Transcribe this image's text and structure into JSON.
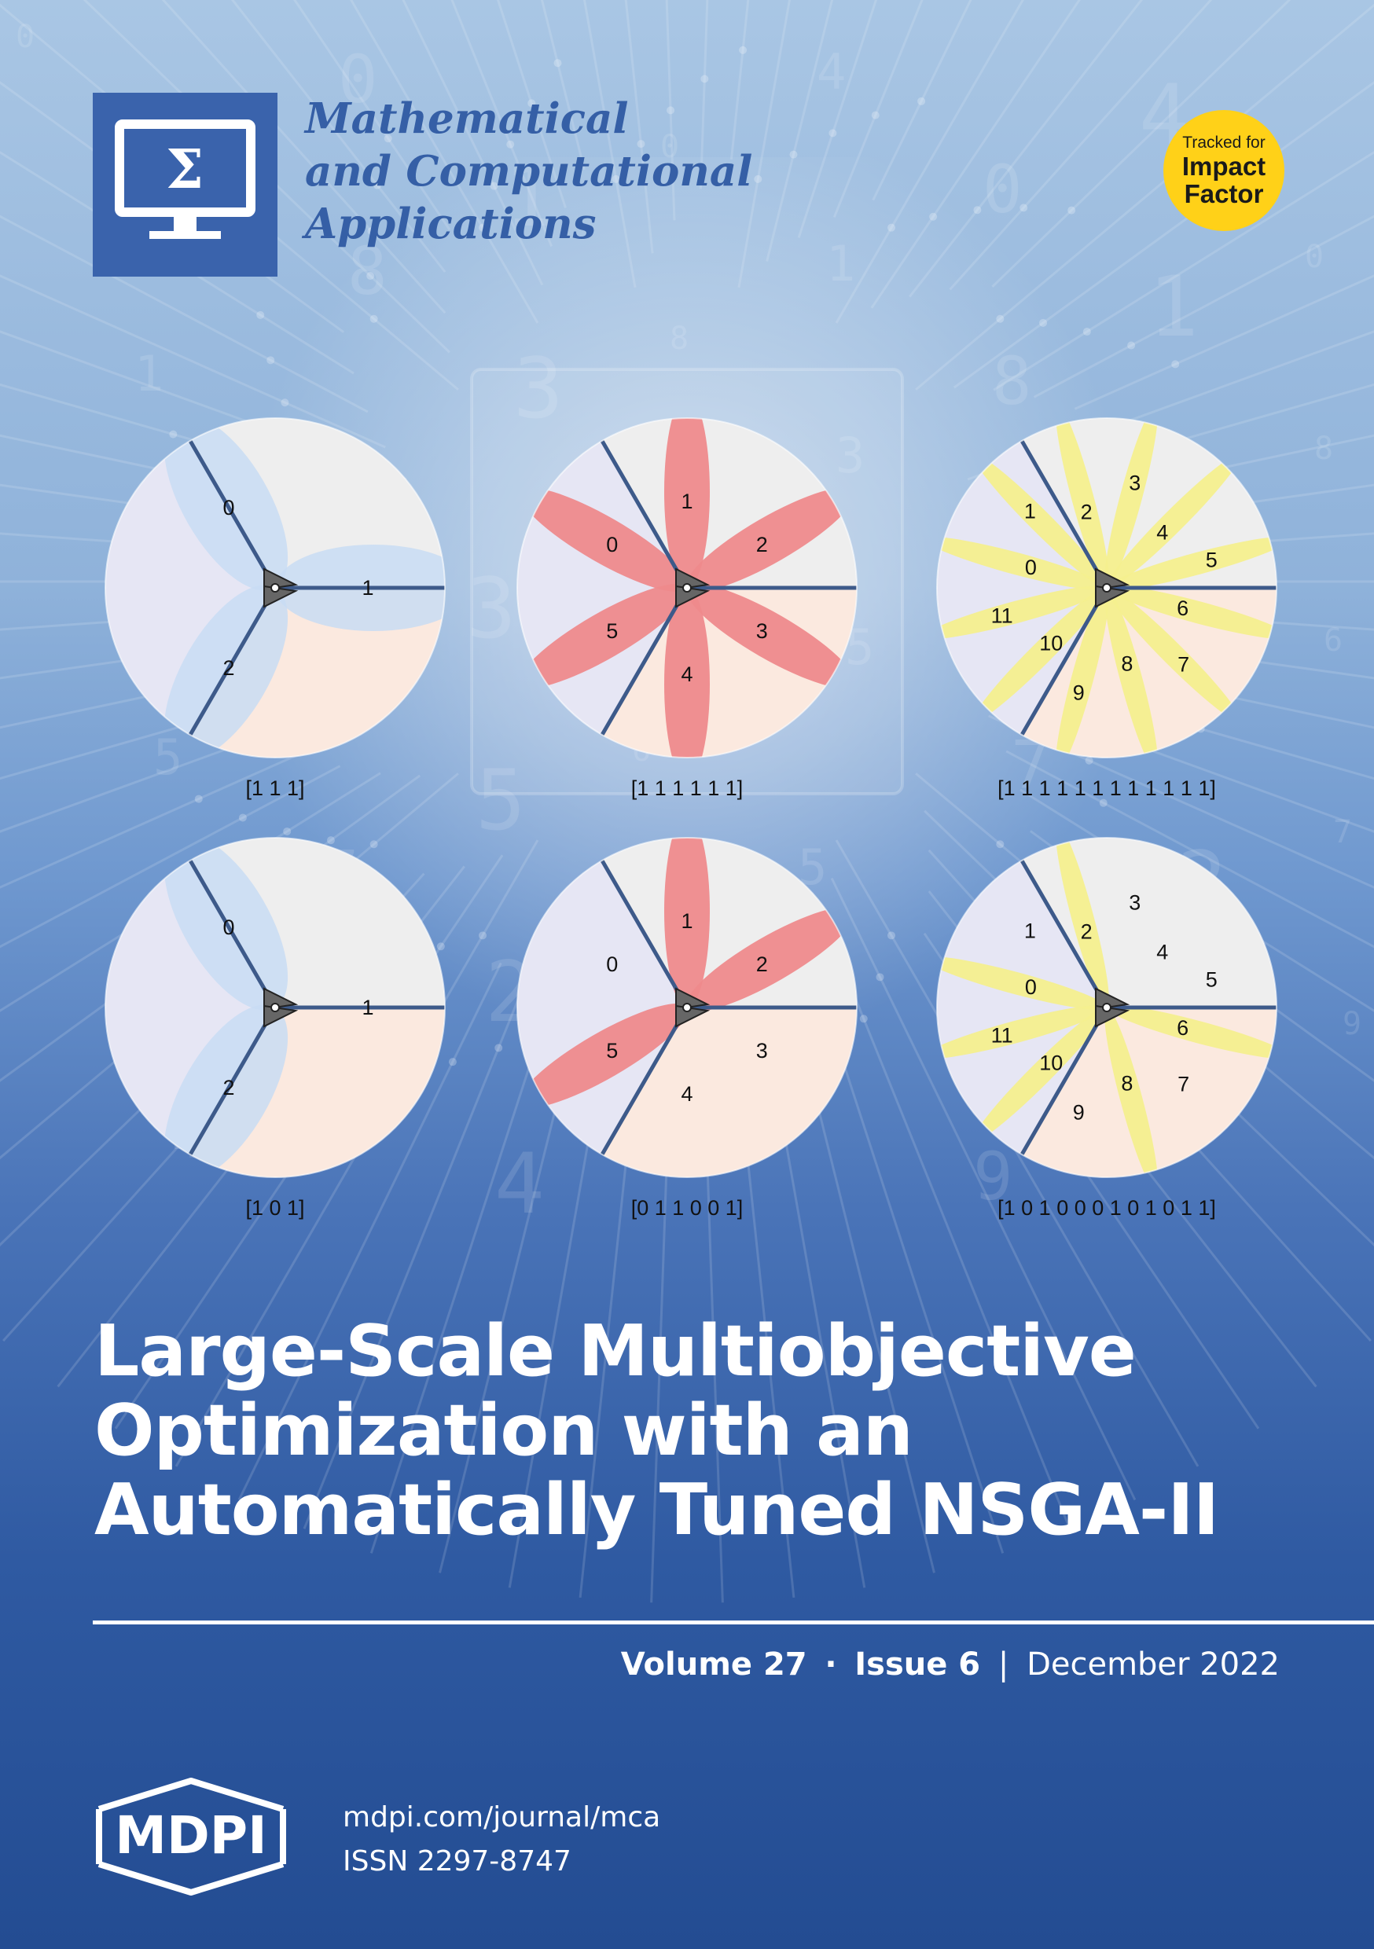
{
  "journal": {
    "title_lines": [
      "Mathematical",
      "and Computational",
      "Applications"
    ],
    "logo_symbol": "Σ",
    "logo_icon": "monitor-sigma-icon"
  },
  "badge": {
    "line1": "Tracked for",
    "line2": "Impact",
    "line3": "Factor"
  },
  "diagrams": [
    {
      "label": "[1 1 1]",
      "sectors": [
        {
          "id": "0",
          "petal": true
        },
        {
          "id": "1",
          "petal": true
        },
        {
          "id": "2",
          "petal": true
        }
      ],
      "petal_color": "#c8dcf3"
    },
    {
      "label": "[1 1 1 1 1 1]",
      "sectors": [
        {
          "id": "0",
          "petal": true
        },
        {
          "id": "1",
          "petal": true
        },
        {
          "id": "2",
          "petal": true
        },
        {
          "id": "3",
          "petal": true
        },
        {
          "id": "4",
          "petal": true
        },
        {
          "id": "5",
          "petal": true
        }
      ],
      "petal_color": "#ee8a8c"
    },
    {
      "label": "[1 1 1 1 1 1 1 1 1 1 1 1]",
      "sectors": [
        {
          "id": "0",
          "petal": true
        },
        {
          "id": "1",
          "petal": true
        },
        {
          "id": "2",
          "petal": true
        },
        {
          "id": "3",
          "petal": true
        },
        {
          "id": "4",
          "petal": true
        },
        {
          "id": "5",
          "petal": true
        },
        {
          "id": "6",
          "petal": true
        },
        {
          "id": "7",
          "petal": true
        },
        {
          "id": "8",
          "petal": true
        },
        {
          "id": "9",
          "petal": true
        },
        {
          "id": "10",
          "petal": true
        },
        {
          "id": "11",
          "petal": true
        }
      ],
      "petal_color": "#f4ef8e"
    },
    {
      "label": "[1 0 1]",
      "sectors": [
        {
          "id": "0",
          "petal": true
        },
        {
          "id": "1",
          "petal": false
        },
        {
          "id": "2",
          "petal": true
        }
      ],
      "petal_color": "#c8dcf3"
    },
    {
      "label": "[0 1 1 0 0 1]",
      "sectors": [
        {
          "id": "0",
          "petal": false
        },
        {
          "id": "1",
          "petal": true
        },
        {
          "id": "2",
          "petal": true
        },
        {
          "id": "3",
          "petal": false
        },
        {
          "id": "4",
          "petal": false
        },
        {
          "id": "5",
          "petal": true
        }
      ],
      "petal_color": "#ee8a8c"
    },
    {
      "label": "[1 0 1 0 0 0 1 0 1 0 1 1]",
      "sectors": [
        {
          "id": "0",
          "petal": true
        },
        {
          "id": "1",
          "petal": false
        },
        {
          "id": "2",
          "petal": true
        },
        {
          "id": "3",
          "petal": false
        },
        {
          "id": "4",
          "petal": false
        },
        {
          "id": "5",
          "petal": false
        },
        {
          "id": "6",
          "petal": true
        },
        {
          "id": "7",
          "petal": false
        },
        {
          "id": "8",
          "petal": true
        },
        {
          "id": "9",
          "petal": false
        },
        {
          "id": "10",
          "petal": true
        },
        {
          "id": "11",
          "petal": true
        }
      ],
      "petal_color": "#f4ef8e"
    }
  ],
  "main_title": {
    "lines": [
      "Large-Scale Multiobjective",
      "Optimization with an",
      "Automatically Tuned NSGA-II"
    ]
  },
  "issue": {
    "volume": "Volume 27",
    "separator": "·",
    "issue": "Issue 6",
    "divider": "|",
    "date": "December 2022"
  },
  "publisher": {
    "logo_text": "MDPI",
    "url": "mdpi.com/journal/mca",
    "issn": "ISSN 2297-8747"
  },
  "colors": {
    "brand_blue": "#3a63ac",
    "badge_yellow": "#ffd118",
    "sector_left": "#e6e6f4",
    "sector_top": "#eeeeee",
    "sector_bottom": "#fbe9df"
  }
}
